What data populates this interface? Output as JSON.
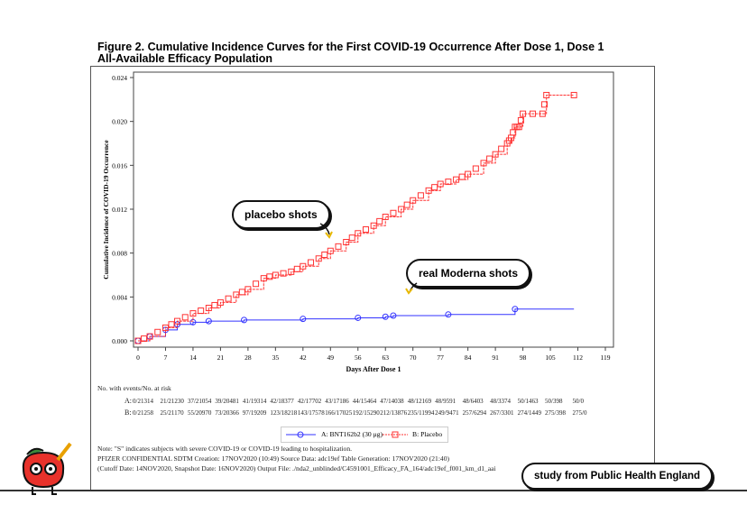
{
  "title_line1": "Figure 2. Cumulative Incidence Curves for the First COVID-19 Occurrence After Dose 1, Dose 1",
  "title_line2": "All-Available Efficacy Population",
  "chart_data": {
    "type": "line",
    "xlabel": "Days After Dose 1",
    "ylabel": "Cumulative Incidence of COVID-19 Occurrence",
    "xlim": [
      0,
      119
    ],
    "ylim": [
      0,
      0.024
    ],
    "xticks": [
      0,
      7,
      14,
      21,
      28,
      35,
      42,
      49,
      56,
      63,
      70,
      77,
      84,
      91,
      98,
      105,
      112,
      119
    ],
    "yticks": [
      "0.000",
      "0.004",
      "0.008",
      "0.012",
      "0.016",
      "0.020",
      "0.024"
    ],
    "series": [
      {
        "name": "A: BNT162b2 (30 μg)",
        "color": "#3333ff",
        "points": [
          [
            0,
            0
          ],
          [
            3,
            0.0004
          ],
          [
            7,
            0.001
          ],
          [
            10,
            0.0015
          ],
          [
            14,
            0.0017
          ],
          [
            18,
            0.0018
          ],
          [
            27,
            0.0019
          ],
          [
            42,
            0.002
          ],
          [
            56,
            0.0021
          ],
          [
            63,
            0.0022
          ],
          [
            65,
            0.0023
          ],
          [
            79,
            0.0024
          ],
          [
            96,
            0.0029
          ],
          [
            111,
            0.0029
          ]
        ]
      },
      {
        "name": "B: Placebo",
        "color": "#ff3333",
        "points": [
          [
            0,
            0
          ],
          [
            3,
            0.0004
          ],
          [
            7,
            0.0012
          ],
          [
            10,
            0.0018
          ],
          [
            14,
            0.0025
          ],
          [
            18,
            0.003
          ],
          [
            21,
            0.0035
          ],
          [
            25,
            0.0042
          ],
          [
            28,
            0.0047
          ],
          [
            32,
            0.0057
          ],
          [
            35,
            0.006
          ],
          [
            39,
            0.0063
          ],
          [
            42,
            0.0068
          ],
          [
            46,
            0.0075
          ],
          [
            49,
            0.0082
          ],
          [
            53,
            0.009
          ],
          [
            56,
            0.0098
          ],
          [
            60,
            0.0105
          ],
          [
            63,
            0.0113
          ],
          [
            67,
            0.012
          ],
          [
            70,
            0.0128
          ],
          [
            74,
            0.0137
          ],
          [
            77,
            0.0143
          ],
          [
            81,
            0.0147
          ],
          [
            84,
            0.0152
          ],
          [
            88,
            0.0162
          ],
          [
            91,
            0.017
          ],
          [
            94,
            0.018
          ],
          [
            95,
            0.0185
          ],
          [
            96,
            0.0195
          ],
          [
            97,
            0.0195
          ],
          [
            98,
            0.0207
          ],
          [
            103,
            0.0207
          ],
          [
            104,
            0.0224
          ],
          [
            111,
            0.0224
          ]
        ]
      }
    ]
  },
  "risk_table": {
    "header": "No. with events/No. at risk",
    "rows": [
      {
        "label": "A:",
        "values": [
          "0/21314",
          "21/21230",
          "37/21054",
          "39/20481",
          "41/19314",
          "42/18377",
          "42/17702",
          "43/17186",
          "44/15464",
          "47/14038",
          "48/12169",
          "48/9591",
          "48/6403",
          "48/3374",
          "50/1463",
          "50/398",
          "50/0"
        ]
      },
      {
        "label": "B:",
        "values": [
          "0/21258",
          "25/21170",
          "55/20970",
          "73/20366",
          "97/19209",
          "123/18218",
          "143/17578",
          "166/17025",
          "192/15290",
          "212/13876",
          "235/11994",
          "249/9471",
          "257/6294",
          "267/3301",
          "274/1449",
          "275/398",
          "275/0"
        ]
      }
    ]
  },
  "legend": {
    "a": "A: BNT162b2 (30 μg)",
    "b": "B: Placebo"
  },
  "notes": [
    "Note: \"S\" indicates subjects with severe COVID-19 or COVID-19 leading to hospitalization.",
    "PFIZER CONFIDENTIAL  SDTM Creation: 17NOV2020 (10:49)  Source Data: adc19ef  Table Generation: 17NOV2020 (21:40)",
    "(Cutoff Date: 14NOV2020, Snapshot Date: 16NOV2020) Output File: ./nda2_unblinded/C4591001_Efficacy_FA_164/adc19ef_f001_km_d1_aai"
  ],
  "callouts": {
    "placebo": "placebo shots",
    "vaccine": "real Moderna shots",
    "source": "study from Public Health England"
  }
}
